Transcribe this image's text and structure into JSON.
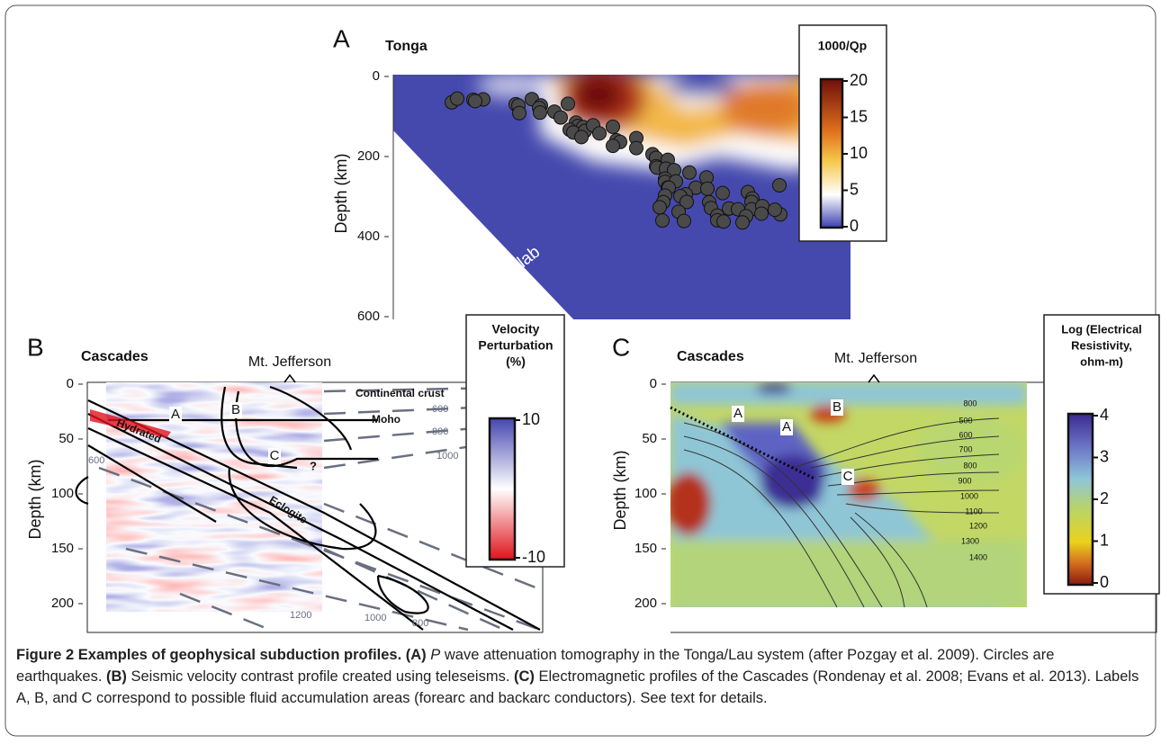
{
  "panel_a": {
    "letter": "A",
    "title": "Tonga",
    "y_label": "Depth (km)",
    "yticks": [
      0,
      200,
      400,
      600
    ],
    "annotation": "Slab",
    "colorbar": {
      "title": "1000/Qp",
      "ticks": [
        0,
        5,
        10,
        15,
        20
      ]
    }
  },
  "panel_b": {
    "letter": "B",
    "title": "Cascades",
    "volcano": "Mt. Jefferson",
    "y_label": "Depth (km)",
    "yticks": [
      0,
      50,
      100,
      150,
      200
    ],
    "annotations": {
      "continental_crust": "Continental crust",
      "moho": "Moho",
      "hydrated": "Hydrated",
      "eclogite": "Eclogite",
      "a": "A",
      "b": "B",
      "c": "C",
      "question": "?"
    },
    "contour_labels": [
      600,
      800,
      1000,
      600,
      1200,
      1000,
      800
    ],
    "colorbar": {
      "title": [
        "Velocity",
        "Perturbation",
        "(%)"
      ],
      "ticks": [
        -10,
        10
      ]
    }
  },
  "panel_c": {
    "letter": "C",
    "title": "Cascades",
    "volcano": "Mt. Jefferson",
    "y_label": "Depth (km)",
    "yticks": [
      0,
      50,
      100,
      150,
      200
    ],
    "annotations": {
      "a_trench": "A",
      "a_forearc": "A",
      "b": "B",
      "c": "C"
    },
    "contour_labels": [
      800,
      500,
      600,
      700,
      800,
      900,
      1000,
      1100,
      1200,
      1300,
      1400
    ],
    "colorbar": {
      "title": [
        "Log (Electrical",
        "Resistivity,",
        "ohm-m)"
      ],
      "ticks": [
        0,
        1,
        2,
        3,
        4
      ]
    }
  },
  "caption": {
    "title": "Figure 2 Examples of geophysical subduction profiles.",
    "label_a": "(A)",
    "italic_a": "P",
    "text_a": "wave attenuation tomography in the Tonga/Lau system (after Pozgay et al. 2009). Circles are earthquakes.",
    "label_b": "(B)",
    "text_b": "Seismic velocity contrast profile created using teleseisms.",
    "label_c": "(C)",
    "text_c": "Electromagnetic profiles of the Cascades (Rondenay et al. 2008; Evans et al. 2013). Labels A, B, and C correspond to possible fluid accumulation areas (forearc and backarc conductors). See text for details."
  }
}
